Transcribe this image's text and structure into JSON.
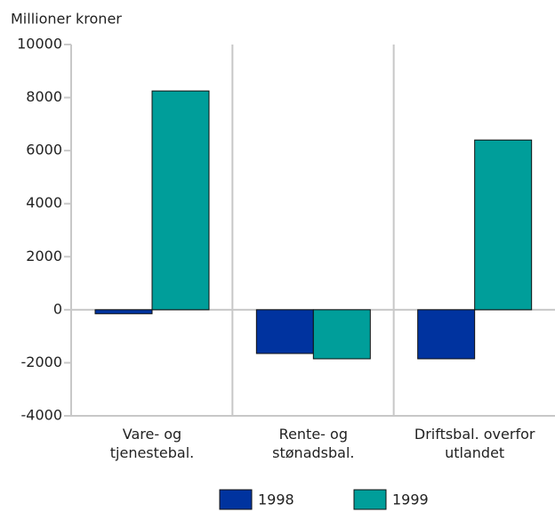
{
  "chart_data": {
    "type": "bar",
    "yaxis_label": "Millioner kroner",
    "categories": [
      "Vare- og\ntjenestebal.",
      "Rente- og\nstønadsbal.",
      "Driftsbal. overfor\nutlandet"
    ],
    "series": [
      {
        "name": "1998",
        "color": "#00339f",
        "values": [
          -150,
          -1650,
          -1850
        ]
      },
      {
        "name": "1999",
        "color": "#009e9a",
        "values": [
          8250,
          -1850,
          6400
        ]
      }
    ],
    "ylim": [
      -4000,
      10000
    ],
    "yticks": [
      -4000,
      -2000,
      0,
      2000,
      4000,
      6000,
      8000,
      10000
    ],
    "grid": false
  }
}
